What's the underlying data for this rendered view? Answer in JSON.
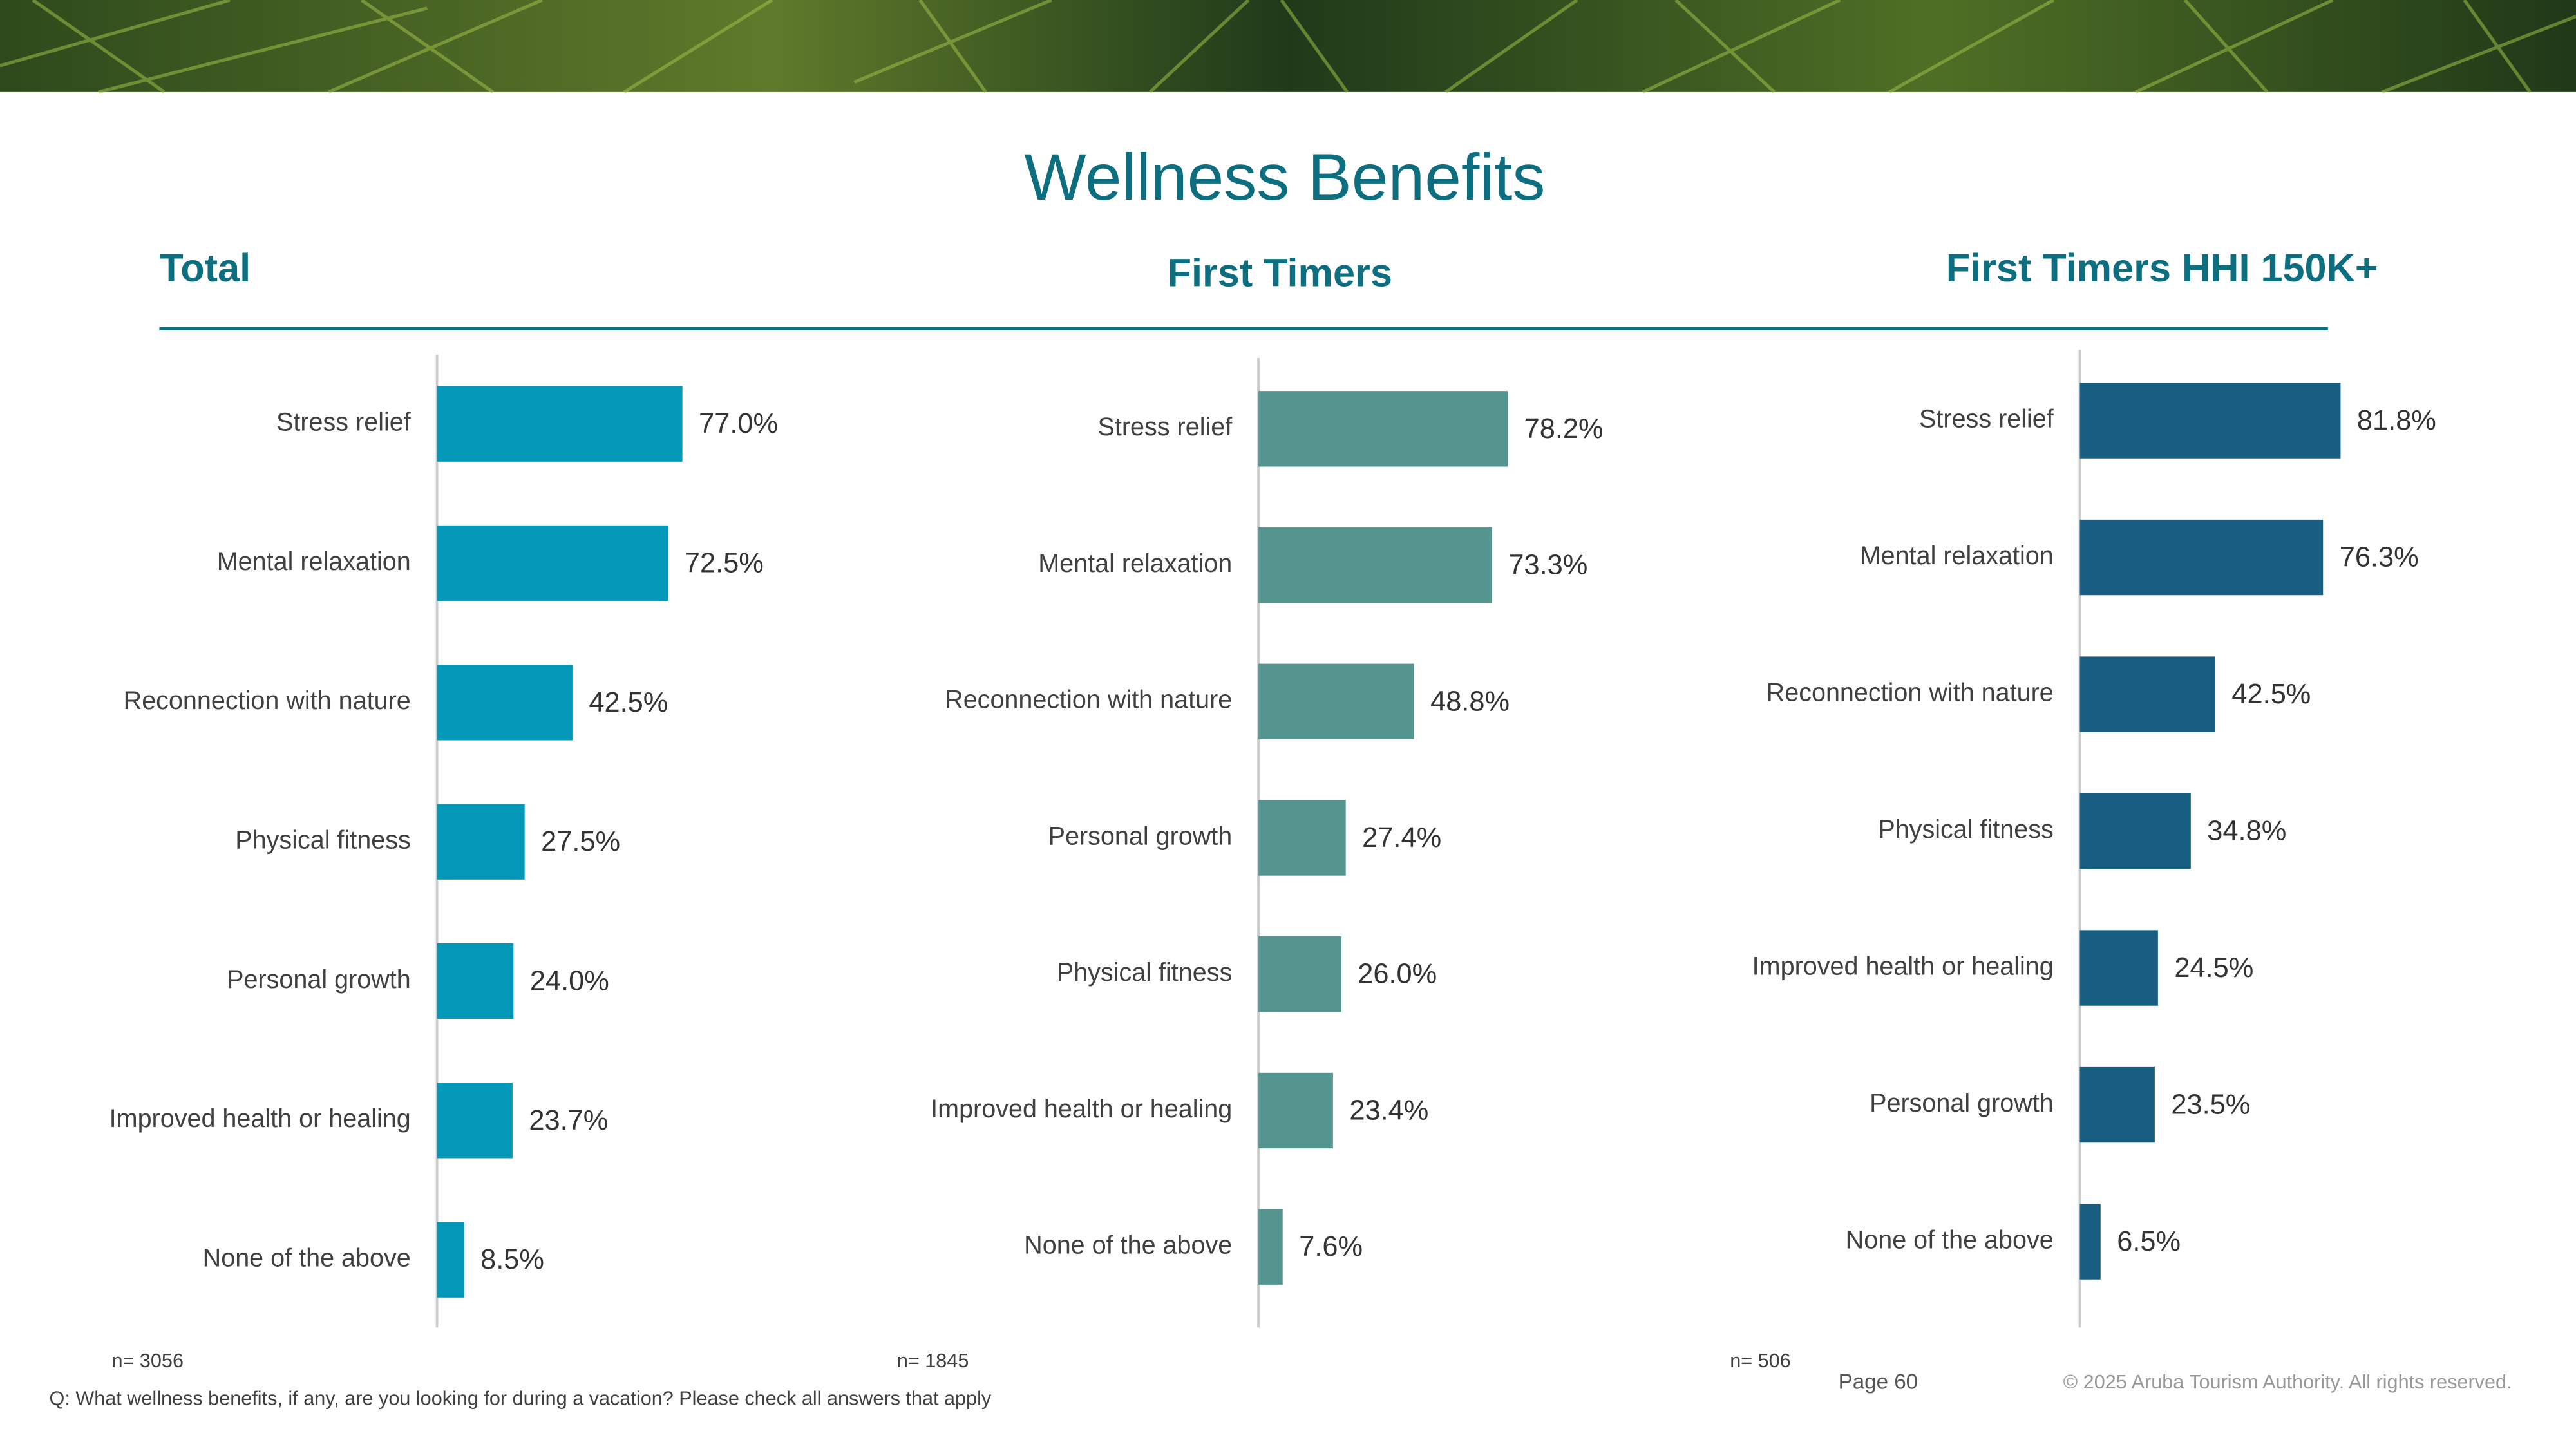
{
  "title": "Wellness Benefits",
  "question": "Q: What wellness benefits, if any, are you looking for during a vacation? Please check all answers that apply",
  "page": "Page 60",
  "copyright": "© 2025 Aruba Tourism Authority. All rights reserved.",
  "chart_data": [
    {
      "type": "bar",
      "orientation": "horizontal",
      "title": "Total",
      "color": "#0397b8",
      "categories": [
        "Stress relief",
        "Mental relaxation",
        "Reconnection with nature",
        "Physical fitness",
        "Personal growth",
        "Improved health or healing",
        "None of the above"
      ],
      "values": [
        77.0,
        72.5,
        42.5,
        27.5,
        24.0,
        23.7,
        8.5
      ],
      "value_labels": [
        "77.0%",
        "72.5%",
        "42.5%",
        "27.5%",
        "24.0%",
        "23.7%",
        "8.5%"
      ],
      "note": "n= 3056"
    },
    {
      "type": "bar",
      "orientation": "horizontal",
      "title": "First Timers",
      "color": "#55958f",
      "categories": [
        "Stress relief",
        "Mental relaxation",
        "Reconnection with nature",
        "Personal growth",
        "Physical fitness",
        "Improved health or healing",
        "None of the above"
      ],
      "values": [
        78.2,
        73.3,
        48.8,
        27.4,
        26.0,
        23.4,
        7.6
      ],
      "value_labels": [
        "78.2%",
        "73.3%",
        "48.8%",
        "27.4%",
        "26.0%",
        "23.4%",
        "7.6%"
      ],
      "note": "n= 1845"
    },
    {
      "type": "bar",
      "orientation": "horizontal",
      "title": "First Timers HHI 150K+",
      "color": "#175e82",
      "categories": [
        "Stress relief",
        "Mental relaxation",
        "Reconnection with nature",
        "Physical fitness",
        "Improved health or healing",
        "Personal growth",
        "None of the above"
      ],
      "values": [
        81.8,
        76.3,
        42.5,
        34.8,
        24.5,
        23.5,
        6.5
      ],
      "value_labels": [
        "81.8%",
        "76.3%",
        "42.5%",
        "34.8%",
        "24.5%",
        "23.5%",
        "6.5%"
      ],
      "note": "n= 506"
    }
  ]
}
